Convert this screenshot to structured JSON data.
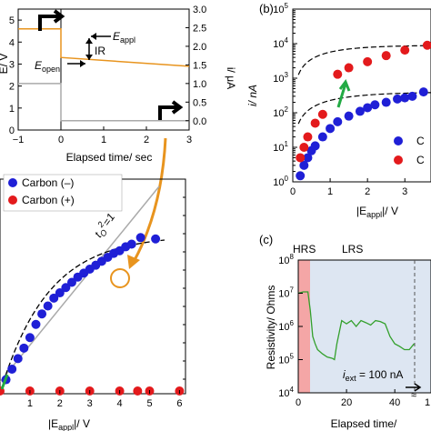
{
  "colors": {
    "carbon_minus": "#1f1fd6",
    "carbon_plus": "#e31a1c",
    "orange": "#e8941e",
    "green": "#22aa44",
    "gray_line": "#aaaaaa",
    "hrs_shade": "#f4a6a6",
    "lrs_shade": "#dde6f2",
    "trace_green": "#33a02c"
  },
  "inset": {
    "ylabel_left": "E/ V",
    "ylabel_right": "i/ μA",
    "xlabel": "Elapsed time/ sec",
    "xticks": [
      "−1",
      "0",
      "1",
      "2",
      "3"
    ],
    "yticks_left": [
      "0",
      "1",
      "2",
      "3",
      "4",
      "5"
    ],
    "yticks_right": [
      "0.0",
      "0.5",
      "1.0",
      "1.5",
      "2.0",
      "2.5",
      "3.0"
    ],
    "annotations": {
      "e_appl": "E",
      "e_appl_sub": "appl",
      "ir": "IR",
      "e_open": "E",
      "e_open_sub": "open"
    }
  },
  "panel_a": {
    "legend": [
      "Carbon (–)",
      "Carbon (+)"
    ],
    "xlabel": "|E",
    "xlabel_sub": "appl",
    "xlabel_tail": "|/ V",
    "xticks": [
      "1",
      "2",
      "3",
      "4",
      "5",
      "6"
    ],
    "line_label": "t",
    "line_label_sub": "O",
    "line_label_sup": "2",
    "line_label_tail": "=1"
  },
  "panel_b": {
    "letter": "(b)",
    "ylabel": "i/ nA",
    "xlabel": "|E",
    "xlabel_sub": "appl",
    "xlabel_tail": "|/ V",
    "xticks": [
      "0",
      "1",
      "2",
      "3"
    ],
    "yticks": [
      {
        "base": "10",
        "exp": "0"
      },
      {
        "base": "10",
        "exp": "1"
      },
      {
        "base": "10",
        "exp": "2"
      },
      {
        "base": "10",
        "exp": "3"
      },
      {
        "base": "10",
        "exp": "4"
      },
      {
        "base": "10",
        "exp": "5"
      }
    ],
    "legend": [
      "C",
      "C"
    ]
  },
  "panel_c": {
    "letter": "(c)",
    "ylabel": "Resistivity/ Ohms",
    "xlabel": "Elapsed time/",
    "xticks": [
      "0",
      "20",
      "40"
    ],
    "x_partial_tick": "1",
    "region_labels": [
      "HRS",
      "LRS"
    ],
    "yticks": [
      {
        "base": "10",
        "exp": "4"
      },
      {
        "base": "10",
        "exp": "5"
      },
      {
        "base": "10",
        "exp": "6"
      },
      {
        "base": "10",
        "exp": "7"
      },
      {
        "base": "10",
        "exp": "8"
      }
    ],
    "annotation": "i",
    "annotation_sub": "ext",
    "annotation_tail": " = 100 nA"
  },
  "chart_data": [
    {
      "type": "line",
      "panel": "inset",
      "xlabel": "Elapsed time/ sec",
      "ylabel": "E/ V",
      "y2label": "i/ μA",
      "xlim": [
        -1,
        3
      ],
      "ylim": [
        0,
        5.5
      ],
      "y2lim": [
        -0.25,
        3.0
      ],
      "series": [
        {
          "x": [
            -1,
            0,
            0,
            3
          ],
          "values": [
            4.6,
            4.6,
            3.3,
            2.9
          ]
        },
        {
          "x": [
            -1,
            0,
            0,
            3
          ],
          "values": [
            1.0,
            1.0,
            0.0,
            0.0
          ]
        }
      ]
    },
    {
      "type": "scatter",
      "panel": "a",
      "xlabel": "|Eappl|/ V",
      "xlim": [
        0,
        6.2
      ],
      "series": [
        {
          "name": "Carbon (–)",
          "x": [
            0.2,
            0.4,
            0.6,
            0.8,
            1.0,
            1.2,
            1.4,
            1.6,
            1.8,
            2.0,
            2.2,
            2.4,
            2.6,
            2.8,
            3.0,
            3.2,
            3.4,
            3.6,
            3.8,
            4.0,
            4.2,
            4.4,
            4.7,
            5.2
          ],
          "values": [
            0.5,
            0.9,
            1.3,
            1.7,
            2.1,
            2.6,
            3.0,
            3.3,
            3.6,
            3.8,
            4.0,
            4.2,
            4.4,
            4.55,
            4.7,
            4.85,
            5.0,
            5.15,
            5.3,
            5.4,
            5.55,
            5.65,
            5.9,
            5.85
          ]
        },
        {
          "name": "Carbon (+)",
          "x": [
            0.0,
            1.0,
            2.0,
            3.0,
            4.0,
            4.6,
            5.0,
            6.0
          ],
          "values": [
            0,
            0,
            0,
            0,
            0,
            0,
            0,
            0
          ]
        }
      ]
    },
    {
      "type": "scatter",
      "panel": "b",
      "xlabel": "|Eappl|/ V",
      "ylabel": "i/ nA",
      "xlim": [
        0,
        3.7
      ],
      "ylim": [
        1,
        100000
      ],
      "yscale": "log",
      "series": [
        {
          "name": "C",
          "x": [
            0.2,
            0.3,
            0.4,
            0.5,
            0.6,
            0.8,
            1.0,
            1.2,
            1.5,
            1.8,
            2.0,
            2.2,
            2.5,
            2.8,
            3.0,
            3.2,
            3.5
          ],
          "values": [
            1.5,
            3,
            5,
            8,
            11,
            20,
            35,
            55,
            80,
            110,
            140,
            170,
            200,
            250,
            270,
            300,
            400
          ]
        },
        {
          "name": "C",
          "x": [
            0.2,
            0.3,
            0.4,
            0.6,
            0.8,
            1.2,
            1.5,
            2.0,
            2.5,
            3.0,
            3.6
          ],
          "values": [
            5,
            10,
            20,
            50,
            90,
            1300,
            2000,
            3000,
            4500,
            6500,
            9000
          ]
        }
      ]
    },
    {
      "type": "line",
      "panel": "c",
      "xlabel": "Elapsed time/",
      "ylabel": "Resistivity/ Ohms",
      "xlim": [
        0,
        55
      ],
      "ylim": [
        10000,
        100000000
      ],
      "yscale": "log",
      "series": [
        {
          "x": [
            0,
            2,
            4,
            5,
            6,
            7,
            8,
            10,
            12,
            14,
            15,
            16,
            18,
            20,
            22,
            24,
            26,
            28,
            30,
            32,
            34,
            36,
            38,
            40,
            42,
            44,
            46,
            48
          ],
          "values": [
            10000000,
            11000000,
            11000000,
            3000000,
            500000,
            300000,
            200000,
            150000,
            120000,
            110000,
            100000,
            300000,
            1500000,
            1200000,
            1500000,
            1000000,
            1500000,
            1300000,
            1100000,
            1500000,
            1400000,
            1200000,
            500000,
            300000,
            250000,
            200000,
            200000,
            300000
          ]
        }
      ]
    }
  ]
}
